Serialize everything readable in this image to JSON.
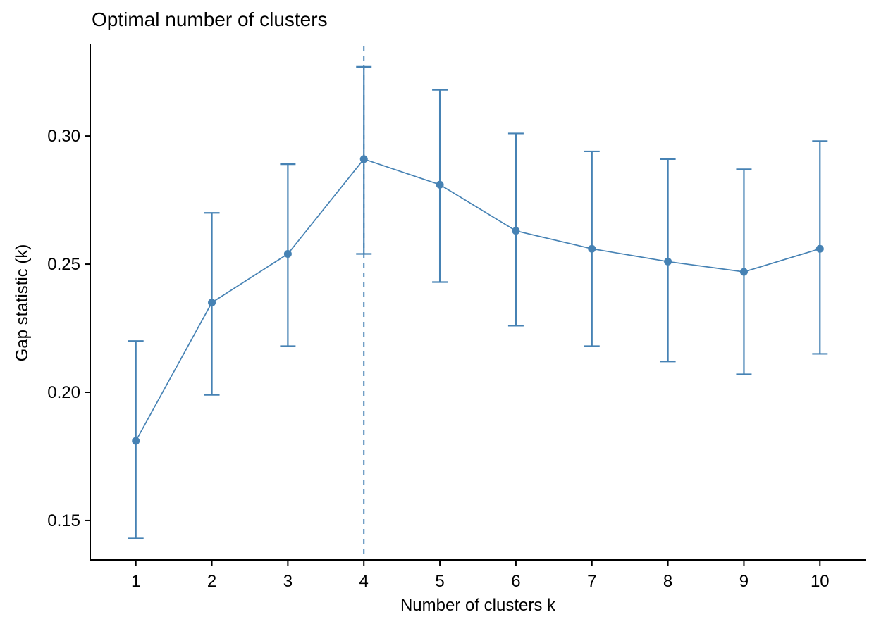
{
  "chart_data": {
    "type": "line",
    "title": "Optimal number of clusters",
    "xlabel": "Number of clusters k",
    "ylabel": "Gap statistic (k)",
    "x": [
      1,
      2,
      3,
      4,
      5,
      6,
      7,
      8,
      9,
      10
    ],
    "series": [
      {
        "name": "Gap statistic",
        "values": [
          0.181,
          0.235,
          0.254,
          0.291,
          0.281,
          0.263,
          0.256,
          0.251,
          0.247,
          0.256
        ],
        "lower": [
          0.143,
          0.199,
          0.218,
          0.254,
          0.243,
          0.226,
          0.218,
          0.212,
          0.207,
          0.215
        ],
        "upper": [
          0.22,
          0.27,
          0.289,
          0.327,
          0.318,
          0.301,
          0.294,
          0.291,
          0.287,
          0.298
        ]
      }
    ],
    "optimal_k": 4,
    "vline": {
      "x": 4,
      "style": "dashed"
    },
    "error_bars": true,
    "x_ticks": [
      1,
      2,
      3,
      4,
      5,
      6,
      7,
      8,
      9,
      10
    ],
    "x_tick_labels": [
      "1",
      "2",
      "3",
      "4",
      "5",
      "6",
      "7",
      "8",
      "9",
      "10"
    ],
    "y_ticks": [
      0.15,
      0.2,
      0.25,
      0.3
    ],
    "y_tick_labels": [
      "0.15",
      "0.20",
      "0.25",
      "0.30"
    ],
    "xlim": [
      0.4,
      10.6
    ],
    "ylim": [
      0.1346,
      0.3352
    ],
    "grid": false,
    "legend_position": "none",
    "colors": {
      "series": "#4682B4",
      "axis": "#000000",
      "text": "#000000",
      "background": "#ffffff"
    }
  }
}
